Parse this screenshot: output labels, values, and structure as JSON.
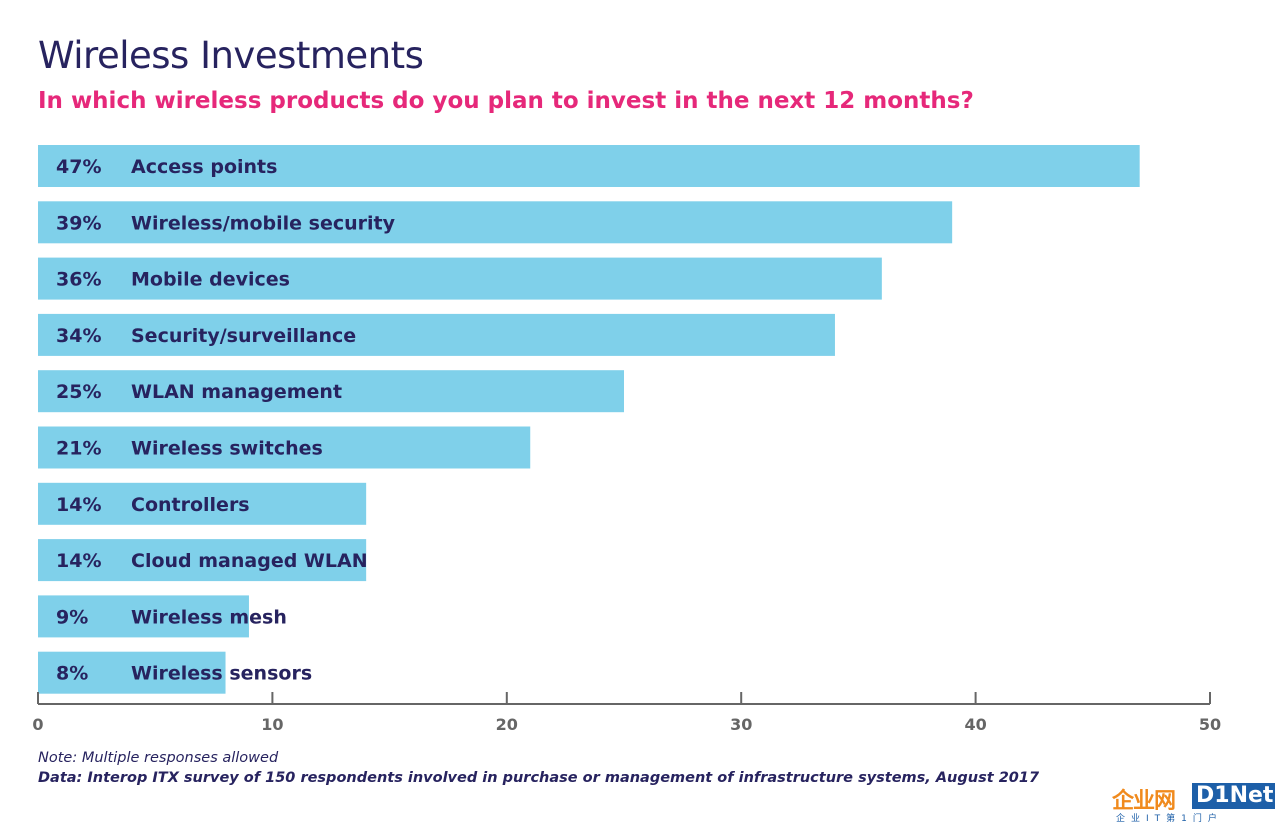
{
  "title": "Wireless Investments",
  "subtitle": "In which wireless products do you plan to invest in the next 12 months?",
  "note": "Note: Multiple responses allowed",
  "source": "Data: Interop ITX survey of 150 respondents involved in purchase or management of infrastructure systems, August 2017",
  "logo": {
    "cn": "企业网",
    "en": "D1Net",
    "sub": "企业IT第1门户"
  },
  "colors": {
    "bar": "#7fd0ea",
    "text": "#27235f",
    "accent": "#e6287a",
    "axis": "#666666"
  },
  "chart_data": {
    "type": "bar",
    "orientation": "horizontal",
    "categories": [
      "Access points",
      "Wireless/mobile security",
      "Mobile devices",
      "Security/surveillance",
      "WLAN management",
      "Wireless switches",
      "Controllers",
      "Cloud managed WLAN",
      "Wireless mesh",
      "Wireless sensors"
    ],
    "values": [
      47,
      39,
      36,
      34,
      25,
      21,
      14,
      14,
      9,
      8
    ],
    "labels": [
      "47%",
      "39%",
      "36%",
      "34%",
      "25%",
      "21%",
      "14%",
      "14%",
      "9%",
      "8%"
    ],
    "xlim": [
      0,
      50
    ],
    "xticks": [
      "0",
      "10",
      "20",
      "30",
      "40",
      "50"
    ],
    "grid": false,
    "legend": "none"
  }
}
